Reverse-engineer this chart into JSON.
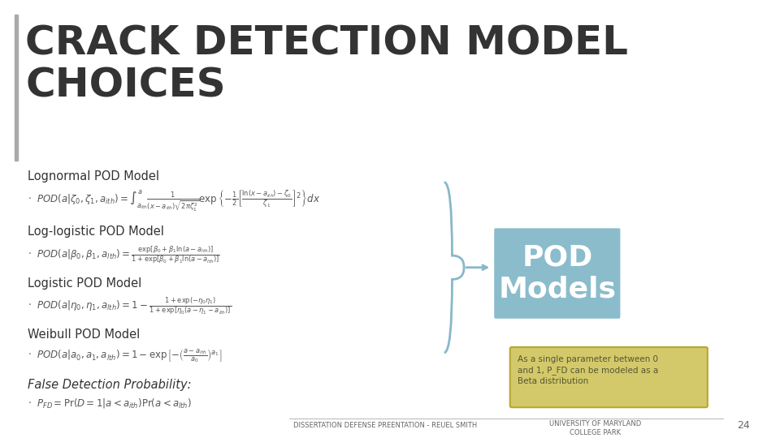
{
  "bg_color": "#ffffff",
  "title_text": "CRACK DETECTION MODEL\nCHOICES",
  "title_color": "#333333",
  "accent_bar_color": "#888888",
  "section_title_color": "#333333",
  "formula_color": "#555555",
  "pod_box_color": "#8bbccc",
  "pod_box_text": "POD\nModels",
  "pod_box_text_color": "#ffffff",
  "note_box_color": "#d4c96a",
  "note_box_border_color": "#b5a830",
  "note_text": "As a single parameter between 0\nand 1, P_FD can be modeled as a\nBeta distribution",
  "note_text_color": "#555533",
  "brace_color": "#88b8c8",
  "footer_text": "DISSERTATION DEFENSE PREENTATION - REUEL SMITH",
  "footer_right_text": "UNIVERSITY OF MARYLAND\nCOLLEGE PARK",
  "page_number": "24",
  "footer_color": "#666666"
}
